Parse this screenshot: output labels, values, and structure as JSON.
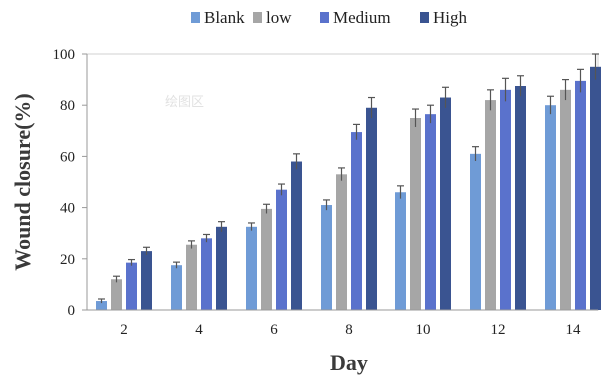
{
  "watermark": "绘图区",
  "chart_data": {
    "type": "bar",
    "xlabel": "Day",
    "ylabel": "Wound closure(%)",
    "categories": [
      "2",
      "4",
      "6",
      "8",
      "10",
      "12",
      "14"
    ],
    "ylim": [
      0,
      100
    ],
    "yticks": [
      "0",
      "20",
      "40",
      "60",
      "80",
      "100"
    ],
    "grid": false,
    "legend_position": "top-center",
    "series": [
      {
        "name": "Blank",
        "color": "#6f9bd6",
        "values": [
          3.5,
          17.5,
          32.5,
          41,
          46,
          61,
          80
        ],
        "errors": [
          0.8,
          1.2,
          1.5,
          2,
          2.5,
          2.8,
          3.5
        ]
      },
      {
        "name": "low",
        "color": "#a6a6a6",
        "values": [
          12,
          25.5,
          39.5,
          53,
          75,
          82,
          86
        ],
        "errors": [
          1.2,
          1.5,
          1.8,
          2.5,
          3.5,
          4,
          4
        ]
      },
      {
        "name": "Medium",
        "color": "#5a72cc",
        "values": [
          18.5,
          28,
          47,
          69.5,
          76.5,
          86,
          89.5
        ],
        "errors": [
          1.2,
          1.5,
          2.2,
          3,
          3.5,
          4.5,
          4.5
        ]
      },
      {
        "name": "High",
        "color": "#3a5491",
        "values": [
          23,
          32.5,
          58,
          79,
          83,
          87.5,
          95
        ],
        "errors": [
          1.5,
          2,
          3,
          4,
          4,
          4,
          5
        ]
      }
    ]
  }
}
